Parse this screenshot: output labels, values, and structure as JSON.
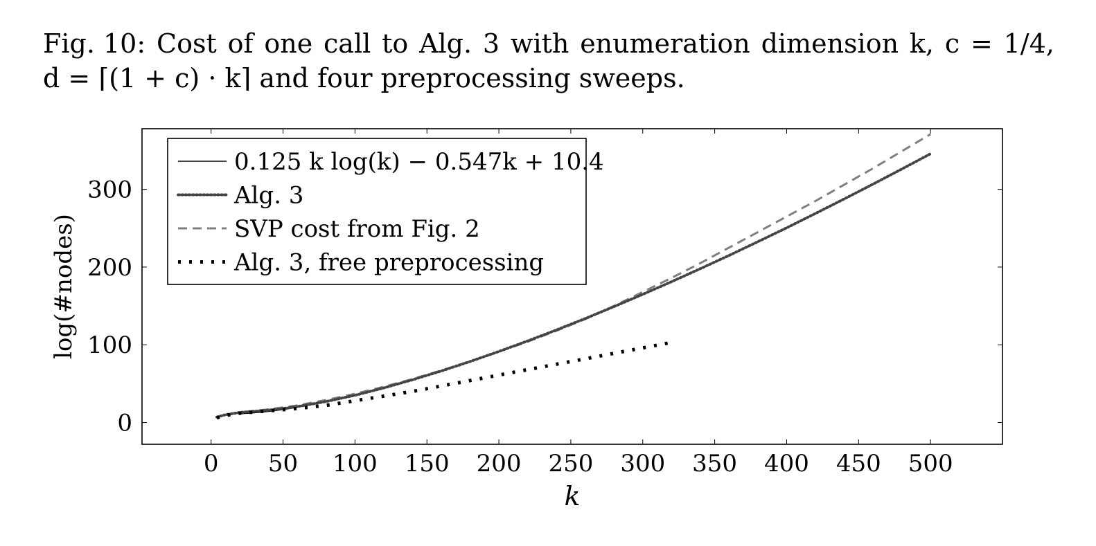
{
  "caption": {
    "line1_words": [
      "Fig. 10:",
      "Cost",
      "of",
      "one",
      "call",
      "to",
      "Alg.",
      "3",
      "with",
      "enumeration",
      "dimension",
      "k,",
      "c",
      "=",
      "1/4,"
    ],
    "line2": "d = ⌈(1 + c) · k⌉ and four preprocessing sweeps."
  },
  "chart_data": {
    "type": "line",
    "xlabel": "k",
    "ylabel": "log(#nodes)",
    "xlim": [
      -48,
      550
    ],
    "ylim": [
      -28,
      378
    ],
    "xticks": [
      0,
      50,
      100,
      150,
      200,
      250,
      300,
      350,
      400,
      450,
      500
    ],
    "yticks": [
      0,
      100,
      200,
      300
    ],
    "legend_position": "top-left",
    "series": [
      {
        "name": "0.125 k log(k) − 0.547k + 10.4",
        "style": "solid",
        "color": "#000000",
        "x": [
          20,
          30,
          40,
          50,
          60,
          80,
          100,
          120,
          140,
          160,
          180,
          200,
          220,
          240,
          260,
          280,
          300,
          320,
          340,
          360,
          380,
          400,
          420,
          440,
          460,
          480,
          500
        ],
        "y": [
          11.3,
          12.5,
          14.3,
          16.7,
          19.6,
          26.6,
          35.0,
          44.5,
          55.0,
          66.3,
          78.5,
          91.4,
          104.9,
          119.1,
          133.8,
          149.1,
          164.9,
          181.1,
          197.9,
          215.0,
          232.6,
          250.5,
          268.9,
          287.6,
          306.7,
          326.1,
          345.8
        ]
      },
      {
        "name": "Alg. 3",
        "style": "dotted",
        "color": "#444444",
        "x": [
          4,
          10,
          20,
          30,
          40,
          50,
          60,
          80,
          100,
          120,
          140,
          160,
          180,
          200,
          220,
          240,
          260,
          280,
          300,
          320,
          340,
          360,
          380,
          400,
          420,
          440,
          460,
          480,
          500
        ],
        "y": [
          7,
          10,
          13,
          14.5,
          16,
          18,
          20.5,
          27,
          35,
          44.5,
          55,
          66.3,
          78.5,
          91.4,
          104.9,
          119.1,
          133.8,
          149.1,
          164.9,
          181.1,
          197.9,
          215,
          232.6,
          250.5,
          268.9,
          287.6,
          306.7,
          326.1,
          345.8
        ]
      },
      {
        "name": "SVP cost from Fig. 2",
        "style": "dashed",
        "color": "#7f7f7f",
        "x": [
          4,
          10,
          20,
          40,
          60,
          80,
          100,
          120,
          140,
          160,
          180,
          200,
          220,
          240,
          260,
          280,
          300,
          320,
          340,
          360,
          380,
          400,
          420,
          440,
          460,
          480,
          500
        ],
        "y": [
          7,
          10,
          13,
          17,
          22,
          29,
          37,
          46,
          56,
          67,
          78.5,
          91,
          104,
          118,
          133,
          150,
          168,
          186,
          205,
          225,
          245,
          265,
          285,
          306,
          327,
          349,
          371
        ]
      },
      {
        "name": "Alg. 3, free preprocessing",
        "style": "sparse-dotted",
        "color": "#000000",
        "x": [
          4,
          10,
          20,
          40,
          60,
          80,
          100,
          120,
          140,
          160,
          180,
          200,
          220,
          240,
          260,
          280,
          300,
          320
        ],
        "y": [
          6,
          9,
          12,
          15,
          18,
          22,
          28,
          34,
          40,
          47,
          54,
          61,
          68,
          75,
          82,
          89,
          96,
          103
        ]
      }
    ]
  },
  "legend": {
    "items": [
      {
        "label": "0.125 k log(k) − 0.547k + 10.4"
      },
      {
        "label": "Alg. 3"
      },
      {
        "label": "SVP cost from Fig. 2"
      },
      {
        "label": "Alg. 3, free preprocessing"
      }
    ]
  }
}
